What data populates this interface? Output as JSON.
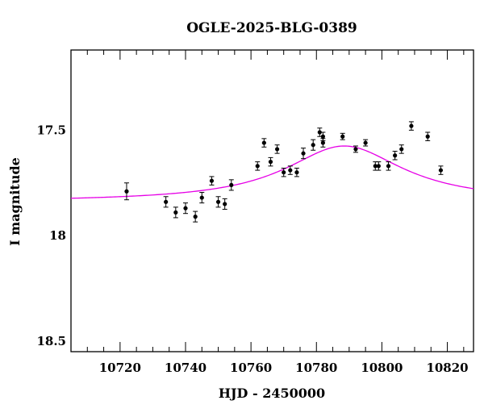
{
  "chart_data": {
    "type": "scatter",
    "title": "OGLE-2025-BLG-0389",
    "xlabel": "HJD - 2450000",
    "ylabel": "I magnitude",
    "xlim": [
      10705,
      10828
    ],
    "ylim": [
      18.55,
      17.12
    ],
    "y_inverted": true,
    "x_ticks": [
      10720,
      10740,
      10760,
      10780,
      10800,
      10820
    ],
    "y_ticks": [
      17.5,
      18,
      18.5
    ],
    "y_tick_labels": [
      "17.5",
      "18",
      "18.5"
    ],
    "grid": false,
    "legend": "none",
    "series": [
      {
        "kind": "points-with-errorbars",
        "color": "#000000",
        "points": [
          {
            "x": 10722,
            "y": 17.79,
            "err": 0.04
          },
          {
            "x": 10734,
            "y": 17.84,
            "err": 0.025
          },
          {
            "x": 10737,
            "y": 17.89,
            "err": 0.025
          },
          {
            "x": 10740,
            "y": 17.87,
            "err": 0.025
          },
          {
            "x": 10743,
            "y": 17.91,
            "err": 0.025
          },
          {
            "x": 10745,
            "y": 17.82,
            "err": 0.025
          },
          {
            "x": 10748,
            "y": 17.74,
            "err": 0.02
          },
          {
            "x": 10750,
            "y": 17.84,
            "err": 0.025
          },
          {
            "x": 10752,
            "y": 17.85,
            "err": 0.025
          },
          {
            "x": 10754,
            "y": 17.76,
            "err": 0.025
          },
          {
            "x": 10762,
            "y": 17.67,
            "err": 0.02
          },
          {
            "x": 10764,
            "y": 17.56,
            "err": 0.02
          },
          {
            "x": 10766,
            "y": 17.65,
            "err": 0.02
          },
          {
            "x": 10768,
            "y": 17.59,
            "err": 0.02
          },
          {
            "x": 10770,
            "y": 17.7,
            "err": 0.02
          },
          {
            "x": 10772,
            "y": 17.69,
            "err": 0.02
          },
          {
            "x": 10774,
            "y": 17.7,
            "err": 0.02
          },
          {
            "x": 10776,
            "y": 17.61,
            "err": 0.025
          },
          {
            "x": 10779,
            "y": 17.57,
            "err": 0.025
          },
          {
            "x": 10781,
            "y": 17.51,
            "err": 0.02
          },
          {
            "x": 10782,
            "y": 17.53,
            "err": 0.02
          },
          {
            "x": 10782,
            "y": 17.56,
            "err": 0.02
          },
          {
            "x": 10788,
            "y": 17.53,
            "err": 0.015
          },
          {
            "x": 10792,
            "y": 17.59,
            "err": 0.015
          },
          {
            "x": 10795,
            "y": 17.56,
            "err": 0.015
          },
          {
            "x": 10798,
            "y": 17.67,
            "err": 0.02
          },
          {
            "x": 10799,
            "y": 17.67,
            "err": 0.02
          },
          {
            "x": 10802,
            "y": 17.67,
            "err": 0.02
          },
          {
            "x": 10804,
            "y": 17.62,
            "err": 0.02
          },
          {
            "x": 10806,
            "y": 17.59,
            "err": 0.02
          },
          {
            "x": 10809,
            "y": 17.48,
            "err": 0.02
          },
          {
            "x": 10814,
            "y": 17.53,
            "err": 0.02
          },
          {
            "x": 10818,
            "y": 17.69,
            "err": 0.02
          }
        ]
      },
      {
        "kind": "model-line",
        "color": "#e600e6",
        "model": {
          "baseline": 17.84,
          "peak_x": 10788.5,
          "peak_y": 17.575,
          "width": 22
        }
      }
    ]
  }
}
